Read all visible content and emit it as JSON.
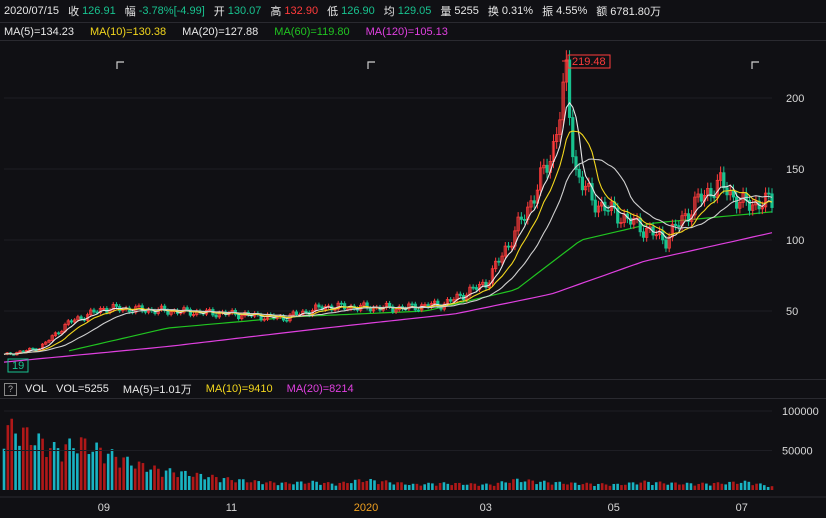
{
  "info": {
    "date": "2020/07/15",
    "close_label": "收",
    "close": "126.91",
    "change_label": "幅",
    "change": "-3.78%[-4.99]",
    "open_label": "开",
    "open": "130.07",
    "high_label": "高",
    "high": "132.90",
    "low_label": "低",
    "low": "126.90",
    "avg_label": "均",
    "avg": "129.05",
    "vol_label": "量",
    "vol": "5255",
    "turnover_label": "换",
    "turnover": "0.31%",
    "amplitude_label": "振",
    "amplitude": "4.55%",
    "amount_label": "额",
    "amount": "6781.80万"
  },
  "ma": [
    {
      "text": "MA(5)=134.23",
      "color": "#e8e8e8"
    },
    {
      "text": "MA(10)=130.38",
      "color": "#f2d61d"
    },
    {
      "text": "MA(20)=127.88",
      "color": "#e8e8e8"
    },
    {
      "text": "MA(60)=119.80",
      "color": "#21c421"
    },
    {
      "text": "MA(120)=105.13",
      "color": "#e040e0"
    }
  ],
  "vol_panel": {
    "icon": "?",
    "title": "VOL",
    "items": [
      {
        "text": "VOL=5255",
        "color": "#e8e8e8"
      },
      {
        "text": "MA(5)=1.01万",
        "color": "#e8e8e8"
      },
      {
        "text": "MA(10)=9410",
        "color": "#f2d61d"
      },
      {
        "text": "MA(20)=8214",
        "color": "#e040e0"
      }
    ]
  },
  "colors": {
    "up": "#ff3b3b",
    "down": "#18c28f",
    "ma5": "#e8e8e8",
    "ma10": "#f2d61d",
    "ma20": "#e8e8e8",
    "ma60": "#21c421",
    "ma120": "#e040e0",
    "vol_up": "#b01818",
    "vol_down": "#19b3c2"
  },
  "chart_data": {
    "type": "candlestick",
    "price_ticks": [
      "200",
      "150",
      "100",
      "50"
    ],
    "price_tick_values": [
      200,
      150,
      100,
      50
    ],
    "volume_ticks": [
      "100000",
      "50000"
    ],
    "volume_tick_values": [
      100000,
      50000
    ],
    "x_ticks": [
      "09",
      "11",
      "2020",
      "03",
      "05",
      "07"
    ],
    "x_tick_dates": [
      "2019-09-01",
      "2019-11-01",
      "2020-01-01",
      "2020-03-01",
      "2020-05-01",
      "2020-07-01"
    ],
    "date_range": [
      "2019-07-15",
      "2020-07-15"
    ],
    "max_label": "219.48",
    "min_label": "19",
    "close_series": [
      {
        "date": "2019-07-15",
        "close": 19
      },
      {
        "date": "2019-08-01",
        "close": 24
      },
      {
        "date": "2019-08-15",
        "close": 42
      },
      {
        "date": "2019-09-01",
        "close": 52
      },
      {
        "date": "2019-10-01",
        "close": 50
      },
      {
        "date": "2019-11-01",
        "close": 48
      },
      {
        "date": "2019-11-25",
        "close": 45
      },
      {
        "date": "2019-12-15",
        "close": 53
      },
      {
        "date": "2020-01-20",
        "close": 52
      },
      {
        "date": "2020-02-10",
        "close": 55
      },
      {
        "date": "2020-03-01",
        "close": 70
      },
      {
        "date": "2020-03-20",
        "close": 120
      },
      {
        "date": "2020-04-01",
        "close": 160
      },
      {
        "date": "2020-04-08",
        "close": 215
      },
      {
        "date": "2020-04-12",
        "close": 150
      },
      {
        "date": "2020-04-20",
        "close": 128
      },
      {
        "date": "2020-05-10",
        "close": 112
      },
      {
        "date": "2020-05-25",
        "close": 100
      },
      {
        "date": "2020-06-10",
        "close": 128
      },
      {
        "date": "2020-06-20",
        "close": 140
      },
      {
        "date": "2020-07-01",
        "close": 125
      },
      {
        "date": "2020-07-15",
        "close": 126.91
      }
    ],
    "ma60_series": [
      {
        "date": "2019-08-15",
        "close": 22
      },
      {
        "date": "2019-10-01",
        "close": 38
      },
      {
        "date": "2019-12-01",
        "close": 46
      },
      {
        "date": "2020-02-01",
        "close": 50
      },
      {
        "date": "2020-03-15",
        "close": 65
      },
      {
        "date": "2020-04-15",
        "close": 100
      },
      {
        "date": "2020-05-20",
        "close": 112
      },
      {
        "date": "2020-07-15",
        "close": 119.8
      }
    ],
    "ma120_series": [
      {
        "date": "2019-07-15",
        "close": 14
      },
      {
        "date": "2019-10-01",
        "close": 25
      },
      {
        "date": "2019-12-15",
        "close": 38
      },
      {
        "date": "2020-02-15",
        "close": 48
      },
      {
        "date": "2020-04-01",
        "close": 62
      },
      {
        "date": "2020-05-15",
        "close": 85
      },
      {
        "date": "2020-07-15",
        "close": 105.13
      }
    ],
    "volume_values": [
      95000,
      80000,
      60000,
      70000,
      55000,
      40000,
      30000,
      25000,
      20000,
      15000,
      12000,
      10000,
      12000,
      9000,
      15000,
      12000,
      8000,
      10000,
      9000,
      8000,
      15000,
      12000,
      10000,
      9000,
      8000,
      12000,
      10000,
      9000,
      10000,
      12000,
      5255
    ]
  }
}
